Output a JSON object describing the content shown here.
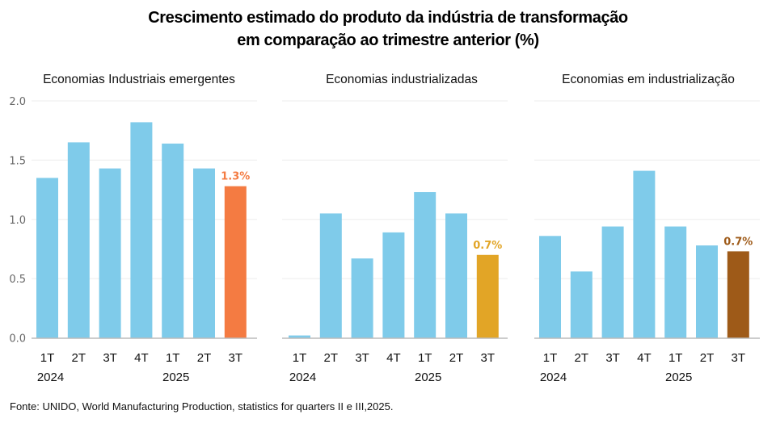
{
  "title": {
    "line1": "Crescimento estimado do produto da indústria de transformação",
    "line2": "em comparação ao trimestre anterior (%)"
  },
  "source": "Fonte: UNIDO, World  Manufacturing Production,  statistics for quarters II e III,2025.",
  "colors": {
    "bar": "#7FCBEA",
    "gridline": "#F0F0F0",
    "axis": "#BBBBBB"
  },
  "chart_data": [
    {
      "type": "bar",
      "title": "Economias Industriais emergentes",
      "categories": [
        "1T",
        "2T",
        "3T",
        "4T",
        "1T",
        "2T",
        "3T"
      ],
      "year_labels": [
        {
          "index": 0,
          "label": "2024"
        },
        {
          "index": 4,
          "label": "2025"
        }
      ],
      "values": [
        1.35,
        1.65,
        1.43,
        1.82,
        1.64,
        1.43,
        1.28
      ],
      "highlight": {
        "index": 6,
        "color": "#F47B42",
        "label": "1.3%"
      },
      "yticks": [
        "0.0",
        "0.5",
        "1.0",
        "1.5",
        "2.0"
      ],
      "ylim": [
        0,
        2.0
      ],
      "show_yaxis_labels": true,
      "grid": true,
      "xlabel": "",
      "ylabel": ""
    },
    {
      "type": "bar",
      "title": "Economias industrializadas",
      "categories": [
        "1T",
        "2T",
        "3T",
        "4T",
        "1T",
        "2T",
        "3T"
      ],
      "year_labels": [
        {
          "index": 0,
          "label": "2024"
        },
        {
          "index": 4,
          "label": "2025"
        }
      ],
      "values": [
        0.02,
        1.05,
        0.67,
        0.89,
        1.23,
        1.05,
        0.7
      ],
      "highlight": {
        "index": 6,
        "color": "#E2A526",
        "label": "0.7%"
      },
      "yticks": [
        "0.0",
        "0.5",
        "1.0",
        "1.5",
        "2.0"
      ],
      "ylim": [
        0,
        2.0
      ],
      "show_yaxis_labels": false,
      "grid": true,
      "xlabel": "",
      "ylabel": ""
    },
    {
      "type": "bar",
      "title": "Economias em industrialização",
      "categories": [
        "1T",
        "2T",
        "3T",
        "4T",
        "1T",
        "2T",
        "3T"
      ],
      "year_labels": [
        {
          "index": 0,
          "label": "2024"
        },
        {
          "index": 4,
          "label": "2025"
        }
      ],
      "values": [
        0.86,
        0.56,
        0.94,
        1.41,
        0.94,
        0.78,
        0.73
      ],
      "highlight": {
        "index": 6,
        "color": "#9E5A18",
        "label": "0.7%"
      },
      "yticks": [
        "0.0",
        "0.5",
        "1.0",
        "1.5",
        "2.0"
      ],
      "ylim": [
        0,
        2.0
      ],
      "show_yaxis_labels": false,
      "grid": true,
      "xlabel": "",
      "ylabel": ""
    }
  ]
}
